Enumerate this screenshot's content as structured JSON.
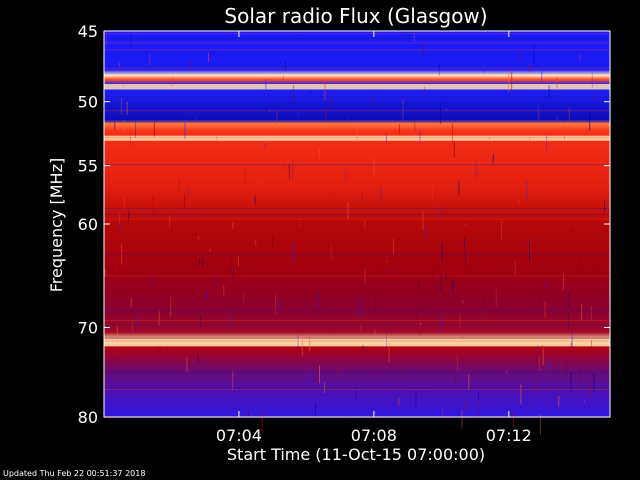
{
  "chart_data": {
    "type": "heatmap",
    "title": "Solar radio Flux (Glasgow)",
    "xlabel": "Start Time (11-Oct-15 07:00:00)",
    "ylabel": "Frequency [MHz]",
    "x_ticks": [
      "07:04",
      "07:08",
      "07:12"
    ],
    "y_ticks": [
      "45",
      "50",
      "55",
      "60",
      "70",
      "80"
    ],
    "xlim": [
      "07:00:00",
      "07:15:00"
    ],
    "ylim": [
      45,
      80
    ],
    "colors": {
      "background": "#000000",
      "low": "#1a1aff",
      "mid": "#bb0000",
      "high": "#ff3a1a",
      "peak": "#ffe0b0"
    },
    "bands": [
      {
        "from": 45.0,
        "to": 45.3,
        "level": "low"
      },
      {
        "from": 45.3,
        "to": 48.7,
        "level": "low"
      },
      {
        "from": 48.7,
        "to": 49.1,
        "level": "peak"
      },
      {
        "from": 49.1,
        "to": 51.5,
        "level": "low"
      },
      {
        "from": 51.5,
        "to": 52.2,
        "level": "low"
      },
      {
        "from": 52.2,
        "to": 52.6,
        "level": "high"
      },
      {
        "from": 52.6,
        "to": 53.0,
        "level": "peak"
      },
      {
        "from": 53.0,
        "to": 58.0,
        "level": "high"
      },
      {
        "from": 58.0,
        "to": 65.0,
        "level": "mid"
      },
      {
        "from": 65.0,
        "to": 71.5,
        "level": "mid"
      },
      {
        "from": 71.5,
        "to": 72.0,
        "level": "peak"
      },
      {
        "from": 72.0,
        "to": 75.0,
        "level": "mid"
      },
      {
        "from": 75.0,
        "to": 80.0,
        "level": "low"
      }
    ]
  },
  "footer": {
    "updated": "Updated Thu Feb 22 00:51:37 2018"
  }
}
